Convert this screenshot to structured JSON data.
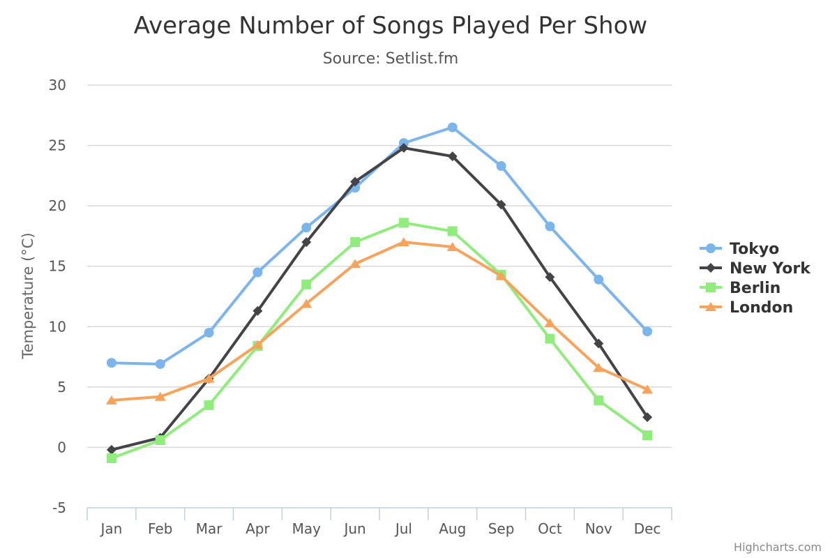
{
  "chart_data": {
    "type": "line",
    "title": "Average Number of Songs Played Per Show",
    "subtitle": "Source: Setlist.fm",
    "xlabel": "",
    "ylabel": "Temperature (°C)",
    "ylim": [
      -5,
      30
    ],
    "yticks": [
      -5,
      0,
      5,
      10,
      15,
      20,
      25,
      30
    ],
    "grid": true,
    "legend_position": "right",
    "categories": [
      "Jan",
      "Feb",
      "Mar",
      "Apr",
      "May",
      "Jun",
      "Jul",
      "Aug",
      "Sep",
      "Oct",
      "Nov",
      "Dec"
    ],
    "series": [
      {
        "name": "Tokyo",
        "color": "#7cb5ec",
        "marker": "circle",
        "values": [
          7.0,
          6.9,
          9.5,
          14.5,
          18.2,
          21.5,
          25.2,
          26.5,
          23.3,
          18.3,
          13.9,
          9.6
        ]
      },
      {
        "name": "New York",
        "color": "#434348",
        "marker": "diamond",
        "values": [
          -0.2,
          0.8,
          5.7,
          11.3,
          17.0,
          22.0,
          24.8,
          24.1,
          20.1,
          14.1,
          8.6,
          2.5
        ]
      },
      {
        "name": "Berlin",
        "color": "#90ed7d",
        "marker": "square",
        "values": [
          -0.9,
          0.6,
          3.5,
          8.4,
          13.5,
          17.0,
          18.6,
          17.9,
          14.3,
          9.0,
          3.9,
          1.0
        ]
      },
      {
        "name": "London",
        "color": "#f7a35c",
        "marker": "triangle",
        "values": [
          3.9,
          4.2,
          5.7,
          8.5,
          11.9,
          15.2,
          17.0,
          16.6,
          14.2,
          10.3,
          6.6,
          4.8
        ]
      }
    ]
  },
  "credits": "Highcharts.com"
}
